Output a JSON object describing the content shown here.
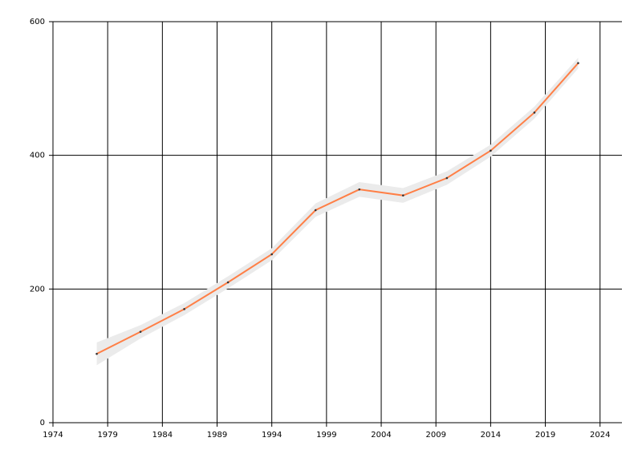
{
  "chart_data": {
    "type": "line",
    "x": [
      1978,
      1982,
      1986,
      1990,
      1994,
      1998,
      2002,
      2006,
      2010,
      2014,
      2018,
      2022
    ],
    "series": [
      {
        "color": "#ff7f46",
        "values": [
          103,
          136,
          170,
          210,
          252,
          318,
          349,
          340,
          366,
          407,
          464,
          538
        ]
      }
    ],
    "band": {
      "color": "#ebebeb",
      "lower": [
        86,
        126,
        161,
        201,
        243,
        308,
        338,
        329,
        356,
        398,
        455,
        530
      ],
      "upper": [
        120,
        146,
        179,
        219,
        261,
        328,
        360,
        351,
        376,
        416,
        473,
        546
      ]
    },
    "xlim": [
      1974,
      2026
    ],
    "xticks": [
      1974,
      1979,
      1984,
      1989,
      1994,
      1999,
      2004,
      2009,
      2014,
      2019,
      2024
    ],
    "ylim": [
      0,
      600
    ],
    "yticks": [
      0,
      200,
      400,
      600
    ],
    "grid": true,
    "marker_color": "#333333"
  }
}
